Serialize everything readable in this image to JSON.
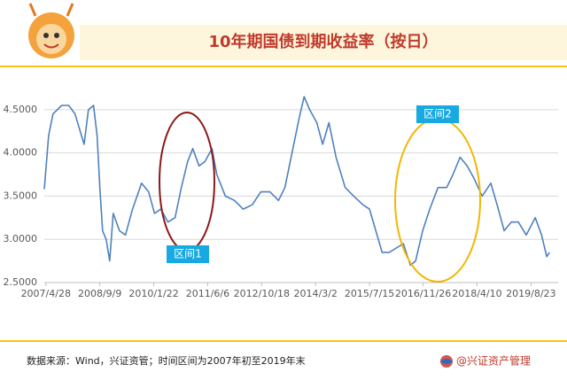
{
  "chart_data": {
    "type": "line",
    "title": "10年期国债到期收益率（按日）",
    "x": [
      2007.28,
      2007.39,
      2007.5,
      2007.72,
      2007.9,
      2008.06,
      2008.29,
      2008.4,
      2008.53,
      2008.62,
      2008.69,
      2008.76,
      2008.85,
      2008.94,
      2009.03,
      2009.19,
      2009.34,
      2009.52,
      2009.75,
      2009.93,
      2010.08,
      2010.24,
      2010.42,
      2010.6,
      2010.76,
      2010.92,
      2011.05,
      2011.21,
      2011.36,
      2011.54,
      2011.66,
      2011.88,
      2012.11,
      2012.33,
      2012.56,
      2012.78,
      2013.01,
      2013.23,
      2013.39,
      2013.57,
      2013.75,
      2013.88,
      2014.02,
      2014.2,
      2014.35,
      2014.51,
      2014.69,
      2014.92,
      2015.14,
      2015.37,
      2015.54,
      2015.7,
      2015.86,
      2016.04,
      2016.22,
      2016.4,
      2016.58,
      2016.71,
      2016.89,
      2017.07,
      2017.28,
      2017.5,
      2017.66,
      2017.84,
      2018.02,
      2018.2,
      2018.4,
      2018.62,
      2018.78,
      2018.96,
      2019.14,
      2019.32,
      2019.52,
      2019.75,
      2019.91,
      2020.04,
      2020.11
    ],
    "series": [
      {
        "color": "#4f81bd",
        "values": [
          3.58,
          4.2,
          4.45,
          4.55,
          4.55,
          4.45,
          4.1,
          4.5,
          4.55,
          4.2,
          3.6,
          3.1,
          3.0,
          2.75,
          3.3,
          3.1,
          3.05,
          3.35,
          3.65,
          3.55,
          3.3,
          3.35,
          3.2,
          3.25,
          3.6,
          3.9,
          4.05,
          3.85,
          3.9,
          4.05,
          3.75,
          3.5,
          3.45,
          3.35,
          3.4,
          3.55,
          3.55,
          3.45,
          3.6,
          4.0,
          4.4,
          4.65,
          4.5,
          4.35,
          4.1,
          4.35,
          3.95,
          3.6,
          3.5,
          3.4,
          3.35,
          3.1,
          2.85,
          2.85,
          2.9,
          2.95,
          2.7,
          2.75,
          3.1,
          3.35,
          3.6,
          3.6,
          3.75,
          3.95,
          3.85,
          3.7,
          3.5,
          3.65,
          3.4,
          3.1,
          3.2,
          3.2,
          3.05,
          3.25,
          3.05,
          2.8,
          2.85
        ]
      }
    ],
    "xlim": [
      2007.28,
      2020.33
    ],
    "xticks": [
      {
        "value": 2007.32,
        "label": "2007/4/28"
      },
      {
        "value": 2008.69,
        "label": "2008/9/9"
      },
      {
        "value": 2010.06,
        "label": "2010/1/22"
      },
      {
        "value": 2011.43,
        "label": "2011/6/6"
      },
      {
        "value": 2012.8,
        "label": "2012/10/18"
      },
      {
        "value": 2014.17,
        "label": "2014/3/2"
      },
      {
        "value": 2015.54,
        "label": "2015/7/15"
      },
      {
        "value": 2016.9,
        "label": "2016/11/26"
      },
      {
        "value": 2018.27,
        "label": "2018/4/10"
      },
      {
        "value": 2019.64,
        "label": "2019/8/23"
      }
    ],
    "ylim": [
      2.5,
      4.8
    ],
    "yticks": [
      {
        "value": 2.5,
        "label": "2.5000"
      },
      {
        "value": 3,
        "label": "3.0000"
      },
      {
        "value": 3.5,
        "label": "3.5000"
      },
      {
        "value": 4,
        "label": "4.0000"
      },
      {
        "value": 4.5,
        "label": "4.5000"
      }
    ],
    "grid": true,
    "annotations": [
      "区间1",
      "区间2"
    ]
  },
  "footer": {
    "source": "数据来源：Wind，兴证资管；时间区间为2007年初至2019年末",
    "brand": "@兴证资产管理"
  }
}
